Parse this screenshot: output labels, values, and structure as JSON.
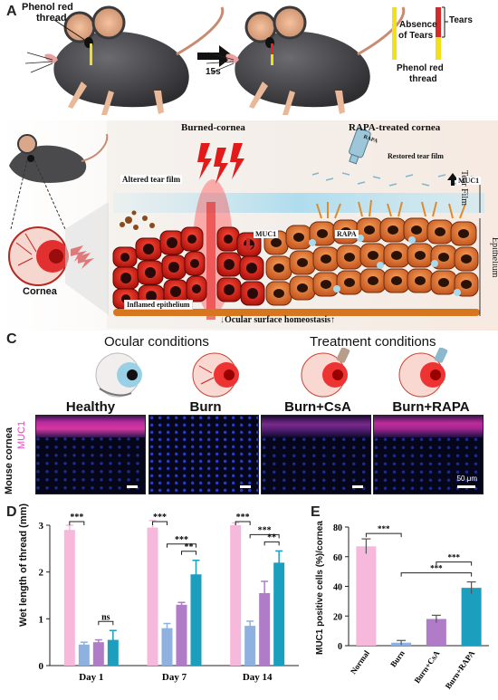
{
  "panels": {
    "a": "A",
    "b": "B",
    "c": "C",
    "d": "D",
    "e": "E"
  },
  "panel_a": {
    "phenol_label_top": "Phenol red",
    "phenol_label_bottom": "thread",
    "time_label": "15s",
    "legend_absence_1": "Absence",
    "legend_absence_2": "of Tears",
    "legend_tears": "Tears",
    "legend_phenol_1": "Phenol red",
    "legend_phenol_2": "thread",
    "colors": {
      "absence": "#f2e01a",
      "tears": "#d42a2a",
      "mouse": "#4a4a4d"
    }
  },
  "panel_b": {
    "burned_title": "Burned-cornea",
    "rapa_title": "RAPA-treated cornea",
    "altered_tear_film": "Altered tear film",
    "restored_tear_film": "Restored tear film",
    "rapa_drop": "RAPA",
    "muc1_down": "MUC1",
    "muc1_up": "MUC1",
    "rapa_label": "RAPA",
    "inflamed": "Inflamed epithelium",
    "homeostasis": "Ocular surface homeostasis",
    "cornea": "Cornea",
    "tear_film_side": "Tear Film",
    "epithelium_side": "Epithelium"
  },
  "panel_c": {
    "ocular_conditions": "Ocular conditions",
    "treatment_conditions": "Treatment conditions",
    "conditions": [
      "Healthy",
      "Burn",
      "Burn+CsA",
      "Burn+RAPA"
    ],
    "side_label": "Mouse cornea",
    "stain": "MUC1",
    "scalebar": "50 μm"
  },
  "chart_data": [
    {
      "type": "bar",
      "panel": "D",
      "ylabel": "Wet length of thread (mm)",
      "categories": [
        "Day 1",
        "Day 7",
        "Day 14"
      ],
      "ylim": [
        0,
        3
      ],
      "yticks": [
        0,
        1,
        2,
        3
      ],
      "series": [
        {
          "values": [
            2.9,
            2.95,
            3.0
          ],
          "errors": [
            0.1,
            0.15,
            0.05
          ],
          "color": "#f6b9dc"
        },
        {
          "values": [
            0.45,
            0.8,
            0.85
          ],
          "errors": [
            0.05,
            0.1,
            0.1
          ],
          "color": "#8fb1e0"
        },
        {
          "values": [
            0.5,
            1.3,
            1.55
          ],
          "errors": [
            0.05,
            0.05,
            0.25
          ],
          "color": "#b07cc8"
        },
        {
          "values": [
            0.55,
            1.95,
            2.2
          ],
          "errors": [
            0.2,
            0.3,
            0.25
          ],
          "color": "#1c9fbf"
        }
      ],
      "annotations": [
        {
          "group": 0,
          "from": 0,
          "to": 1,
          "label": "***"
        },
        {
          "group": 0,
          "from": 2,
          "to": 3,
          "label": "ns"
        },
        {
          "group": 1,
          "from": 0,
          "to": 1,
          "label": "***"
        },
        {
          "group": 1,
          "from": 1,
          "to": 3,
          "label": "***"
        },
        {
          "group": 1,
          "from": 2,
          "to": 3,
          "label": "**"
        },
        {
          "group": 2,
          "from": 0,
          "to": 1,
          "label": "***"
        },
        {
          "group": 2,
          "from": 1,
          "to": 3,
          "label": "***"
        },
        {
          "group": 2,
          "from": 2,
          "to": 3,
          "label": "**"
        }
      ]
    },
    {
      "type": "bar",
      "panel": "E",
      "ylabel": "MUC1 positive cells (%)/cornea",
      "categories": [
        "Normal",
        "Burn",
        "Burn+CsA",
        "Burn+RAPA"
      ],
      "values": [
        67,
        2,
        18,
        39
      ],
      "errors": [
        5,
        1.5,
        2.5,
        4
      ],
      "colors": [
        "#f6b9dc",
        "#8fb1e0",
        "#b07cc8",
        "#1c9fbf"
      ],
      "ylim": [
        0,
        80
      ],
      "yticks": [
        0,
        20,
        40,
        60,
        80
      ],
      "annotations": [
        {
          "from": 0,
          "to": 1,
          "label": "***"
        },
        {
          "from": 1,
          "to": 3,
          "label": "***"
        },
        {
          "from": 2,
          "to": 3,
          "label": "***"
        }
      ]
    }
  ]
}
